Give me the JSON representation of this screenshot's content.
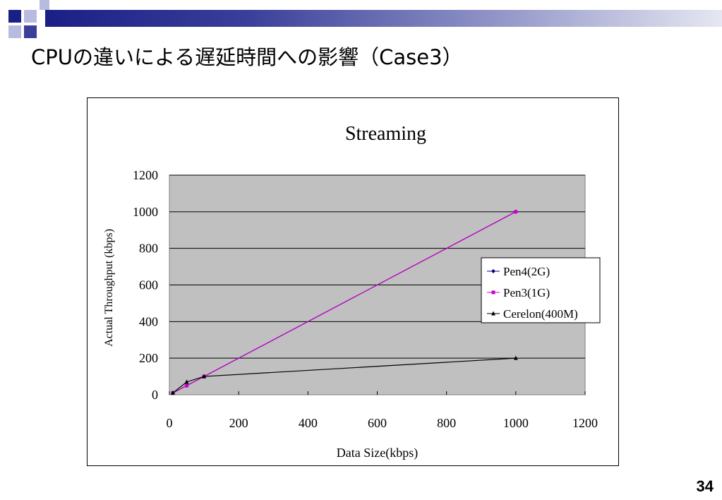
{
  "slide": {
    "title": "CPUの違いによる遅延時間への影響（Case3）",
    "page_number": "34",
    "colors": {
      "bar_dark": "#1a1f86",
      "deco_square": "#3a3f9a",
      "deco_light": "#b8bbe0"
    }
  },
  "chart_data": {
    "type": "line",
    "title": "Streaming",
    "xlabel": "Data Size(kbps)",
    "ylabel": "Actual Throughput (kbps)",
    "xlim": [
      0,
      1200
    ],
    "ylim": [
      0,
      1200
    ],
    "xticks": [
      0,
      200,
      400,
      600,
      800,
      1000,
      1200
    ],
    "yticks": [
      0,
      200,
      400,
      600,
      800,
      1000,
      1200
    ],
    "grid": {
      "horizontal": true,
      "vertical": false
    },
    "plot_background": "#c0c0c0",
    "legend_position": "right",
    "series": [
      {
        "name": "Pen4(2G)",
        "color": "#000080",
        "marker": "diamond",
        "x": [
          10,
          50,
          100,
          1000
        ],
        "y": [
          10,
          50,
          100,
          1000
        ]
      },
      {
        "name": "Pen3(1G)",
        "color": "#cc00cc",
        "marker": "square",
        "x": [
          10,
          50,
          100,
          1000
        ],
        "y": [
          10,
          50,
          100,
          1000
        ]
      },
      {
        "name": "Cerelon(400M)",
        "color": "#000000",
        "marker": "triangle",
        "x": [
          10,
          50,
          100,
          1000
        ],
        "y": [
          10,
          70,
          100,
          200
        ]
      }
    ]
  }
}
